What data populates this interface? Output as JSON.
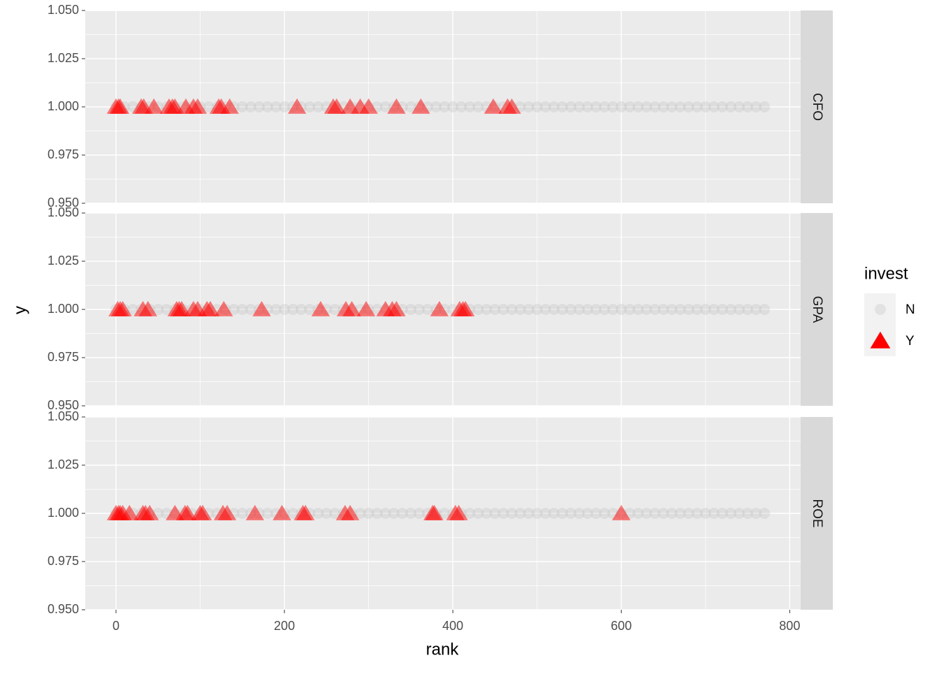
{
  "chart_data": {
    "type": "scatter",
    "x_label": "rank",
    "y_label": "y",
    "legend_title": "invest",
    "legend_position": "right",
    "grid": true,
    "xlim": [
      -36.5,
      813
    ],
    "ylim": [
      0.95,
      1.05
    ],
    "xticks": [
      0,
      200,
      400,
      600,
      800
    ],
    "yticks": [
      {
        "value": 0.95,
        "label": "0.950"
      },
      {
        "value": 0.975,
        "label": "0.975"
      },
      {
        "value": 1.0,
        "label": "1.000"
      },
      {
        "value": 1.025,
        "label": "1.025"
      },
      {
        "value": 1.05,
        "label": "1.050"
      }
    ],
    "facets": [
      {
        "label": "CFO",
        "series": [
          {
            "name": "N",
            "color": "#bdbdbd",
            "marker": "circle",
            "x": [
              0,
              10,
              20,
              30,
              40,
              50,
              60,
              70,
              80,
              90,
              100,
              110,
              120,
              130,
              140,
              150,
              160,
              170,
              180,
              190,
              200,
              210,
              220,
              230,
              240,
              250,
              260,
              270,
              280,
              290,
              300,
              310,
              320,
              330,
              340,
              350,
              360,
              370,
              380,
              390,
              400,
              410,
              420,
              430,
              440,
              450,
              460,
              470,
              480,
              490,
              500,
              510,
              520,
              530,
              540,
              550,
              560,
              570,
              580,
              590,
              600,
              610,
              620,
              630,
              640,
              650,
              660,
              670,
              680,
              690,
              700,
              710,
              720,
              730,
              740,
              750,
              760,
              770
            ],
            "values": [
              1,
              1,
              1,
              1,
              1,
              1,
              1,
              1,
              1,
              1,
              1,
              1,
              1,
              1,
              1,
              1,
              1,
              1,
              1,
              1,
              1,
              1,
              1,
              1,
              1,
              1,
              1,
              1,
              1,
              1,
              1,
              1,
              1,
              1,
              1,
              1,
              1,
              1,
              1,
              1,
              1,
              1,
              1,
              1,
              1,
              1,
              1,
              1,
              1,
              1,
              1,
              1,
              1,
              1,
              1,
              1,
              1,
              1,
              1,
              1,
              1,
              1,
              1,
              1,
              1,
              1,
              1,
              1,
              1,
              1,
              1,
              1,
              1,
              1,
              1,
              1,
              1,
              1
            ]
          },
          {
            "name": "Y",
            "color": "#ff0000",
            "marker": "triangle",
            "x": [
              0,
              3,
              5,
              30,
              33,
              45,
              63,
              67,
              70,
              83,
              92,
              97,
              122,
              125,
              135,
              215,
              258,
              262,
              278,
              290,
              300,
              333,
              362,
              448,
              465,
              470
            ],
            "values": [
              1,
              1,
              1,
              1,
              1,
              1,
              1,
              1,
              1,
              1,
              1,
              1,
              1,
              1,
              1,
              1,
              1,
              1,
              1,
              1,
              1,
              1,
              1,
              1,
              1,
              1
            ]
          }
        ]
      },
      {
        "label": "GPA",
        "series": [
          {
            "name": "N",
            "color": "#bdbdbd",
            "marker": "circle",
            "x": [
              0,
              10,
              20,
              30,
              40,
              50,
              60,
              70,
              80,
              90,
              100,
              110,
              120,
              130,
              140,
              150,
              160,
              170,
              180,
              190,
              200,
              210,
              220,
              230,
              240,
              250,
              260,
              270,
              280,
              290,
              300,
              310,
              320,
              330,
              340,
              350,
              360,
              370,
              380,
              390,
              400,
              410,
              420,
              430,
              440,
              450,
              460,
              470,
              480,
              490,
              500,
              510,
              520,
              530,
              540,
              550,
              560,
              570,
              580,
              590,
              600,
              610,
              620,
              630,
              640,
              650,
              660,
              670,
              680,
              690,
              700,
              710,
              720,
              730,
              740,
              750,
              760,
              770
            ],
            "values": [
              1,
              1,
              1,
              1,
              1,
              1,
              1,
              1,
              1,
              1,
              1,
              1,
              1,
              1,
              1,
              1,
              1,
              1,
              1,
              1,
              1,
              1,
              1,
              1,
              1,
              1,
              1,
              1,
              1,
              1,
              1,
              1,
              1,
              1,
              1,
              1,
              1,
              1,
              1,
              1,
              1,
              1,
              1,
              1,
              1,
              1,
              1,
              1,
              1,
              1,
              1,
              1,
              1,
              1,
              1,
              1,
              1,
              1,
              1,
              1,
              1,
              1,
              1,
              1,
              1,
              1,
              1,
              1,
              1,
              1,
              1,
              1,
              1,
              1,
              1,
              1,
              1,
              1
            ]
          },
          {
            "name": "Y",
            "color": "#ff0000",
            "marker": "triangle",
            "x": [
              2,
              5,
              8,
              32,
              38,
              72,
              75,
              78,
              92,
              97,
              108,
              112,
              128,
              173,
              243,
              273,
              280,
              297,
              320,
              328,
              333,
              384,
              408,
              412,
              415
            ],
            "values": [
              1,
              1,
              1,
              1,
              1,
              1,
              1,
              1,
              1,
              1,
              1,
              1,
              1,
              1,
              1,
              1,
              1,
              1,
              1,
              1,
              1,
              1,
              1,
              1,
              1
            ]
          }
        ]
      },
      {
        "label": "ROE",
        "series": [
          {
            "name": "N",
            "color": "#bdbdbd",
            "marker": "circle",
            "x": [
              0,
              10,
              20,
              30,
              40,
              50,
              60,
              70,
              80,
              90,
              100,
              110,
              120,
              130,
              140,
              150,
              160,
              170,
              180,
              190,
              200,
              210,
              220,
              230,
              240,
              250,
              260,
              270,
              280,
              290,
              300,
              310,
              320,
              330,
              340,
              350,
              360,
              370,
              380,
              390,
              400,
              410,
              420,
              430,
              440,
              450,
              460,
              470,
              480,
              490,
              500,
              510,
              520,
              530,
              540,
              550,
              560,
              570,
              580,
              590,
              600,
              610,
              620,
              630,
              640,
              650,
              660,
              670,
              680,
              690,
              700,
              710,
              720,
              730,
              740,
              750,
              760,
              770
            ],
            "values": [
              1,
              1,
              1,
              1,
              1,
              1,
              1,
              1,
              1,
              1,
              1,
              1,
              1,
              1,
              1,
              1,
              1,
              1,
              1,
              1,
              1,
              1,
              1,
              1,
              1,
              1,
              1,
              1,
              1,
              1,
              1,
              1,
              1,
              1,
              1,
              1,
              1,
              1,
              1,
              1,
              1,
              1,
              1,
              1,
              1,
              1,
              1,
              1,
              1,
              1,
              1,
              1,
              1,
              1,
              1,
              1,
              1,
              1,
              1,
              1,
              1,
              1,
              1,
              1,
              1,
              1,
              1,
              1,
              1,
              1,
              1,
              1,
              1,
              1,
              1,
              1,
              1,
              1
            ]
          },
          {
            "name": "Y",
            "color": "#ff0000",
            "marker": "triangle",
            "x": [
              0,
              3,
              5,
              8,
              16,
              32,
              35,
              40,
              70,
              82,
              85,
              100,
              103,
              127,
              132,
              165,
              197,
              222,
              225,
              272,
              278,
              376,
              378,
              403,
              407,
              600
            ],
            "values": [
              1,
              1,
              1,
              1,
              1,
              1,
              1,
              1,
              1,
              1,
              1,
              1,
              1,
              1,
              1,
              1,
              1,
              1,
              1,
              1,
              1,
              1,
              1,
              1,
              1,
              1
            ]
          }
        ]
      }
    ]
  }
}
